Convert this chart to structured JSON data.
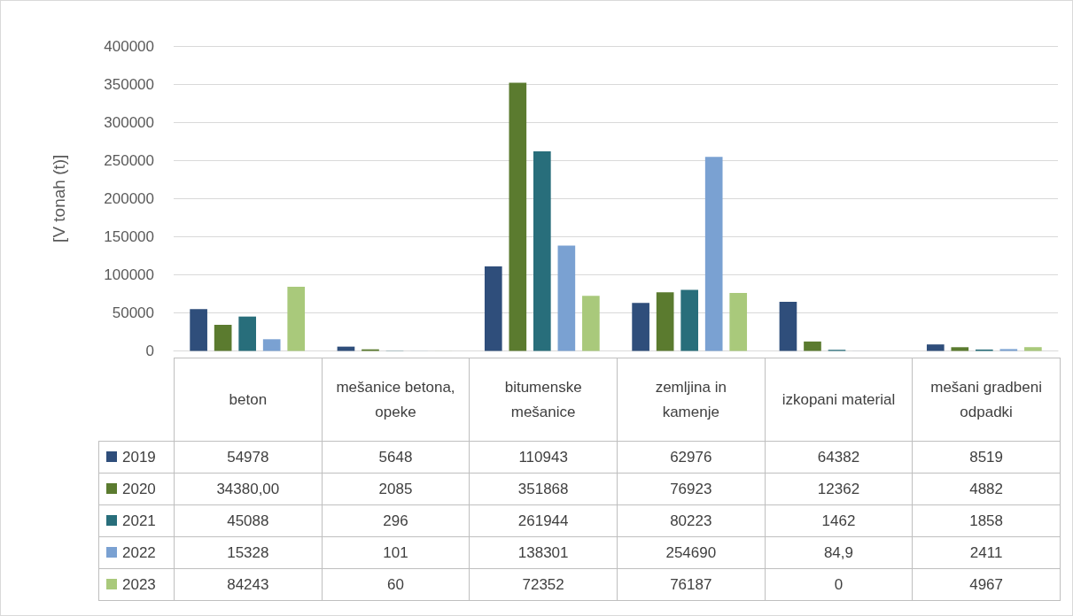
{
  "chart_data": {
    "type": "bar",
    "ylabel": "[V tonah (t)]",
    "categories": [
      "beton",
      "mešanice betona, opeke",
      "bitumenske mešanice",
      "zemljina in kamenje",
      "izkopani material",
      "mešani gradbeni odpadki"
    ],
    "series": [
      {
        "name": "2019",
        "color": "#2f4e7b",
        "values": [
          54978,
          5648,
          110943,
          62976,
          64382,
          8519
        ],
        "value_labels": [
          "54978",
          "5648",
          "110943",
          "62976",
          "64382",
          "8519"
        ]
      },
      {
        "name": "2020",
        "color": "#5b7b2f",
        "values": [
          34380,
          2085,
          351868,
          76923,
          12362,
          4882
        ],
        "value_labels": [
          "34380,00",
          "2085",
          "351868",
          "76923",
          "12362",
          "4882"
        ]
      },
      {
        "name": "2021",
        "color": "#286e7b",
        "values": [
          45088,
          296,
          261944,
          80223,
          1462,
          1858
        ],
        "value_labels": [
          "45088",
          "296",
          "261944",
          "80223",
          "1462",
          "1858"
        ]
      },
      {
        "name": "2022",
        "color": "#7aa1d2",
        "values": [
          15328,
          101,
          138301,
          254690,
          84.9,
          2411
        ],
        "value_labels": [
          "15328",
          "101",
          "138301",
          "254690",
          "84,9",
          "2411"
        ]
      },
      {
        "name": "2023",
        "color": "#a9c97b",
        "values": [
          84243,
          60,
          72352,
          76187,
          0,
          4967
        ],
        "value_labels": [
          "84243",
          "60",
          "72352",
          "76187",
          "0",
          "4967"
        ]
      }
    ],
    "ylim": [
      0,
      400000
    ],
    "yticks": [
      0,
      50000,
      100000,
      150000,
      200000,
      250000,
      300000,
      350000,
      400000
    ],
    "grid": "y",
    "legend": "bottom"
  }
}
